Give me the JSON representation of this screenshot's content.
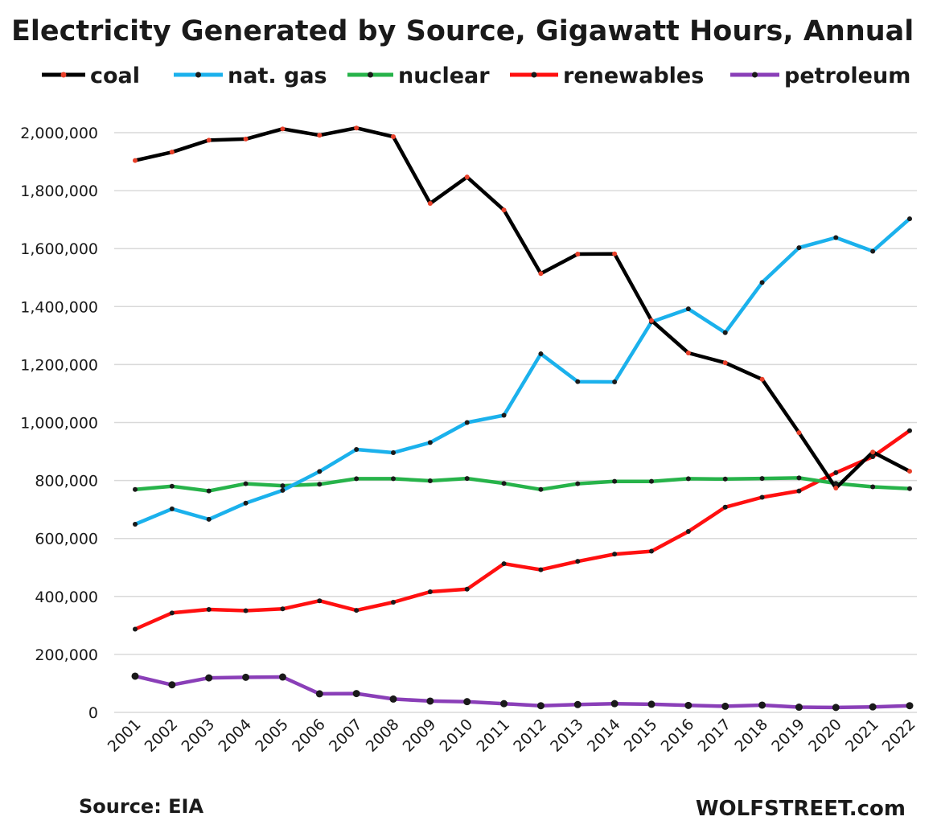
{
  "chart_data": {
    "type": "line",
    "title": "Electricity Generated by Source, Gigawatt Hours, Annual",
    "x": [
      "2001",
      "2002",
      "2003",
      "2004",
      "2005",
      "2006",
      "2007",
      "2008",
      "2009",
      "2010",
      "2011",
      "2012",
      "2013",
      "2014",
      "2015",
      "2016",
      "2017",
      "2018",
      "2019",
      "2020",
      "2021",
      "2022"
    ],
    "ylim": [
      0,
      2000000
    ],
    "yticks": [
      0,
      200000,
      400000,
      600000,
      800000,
      1000000,
      1200000,
      1400000,
      1600000,
      1800000,
      2000000
    ],
    "ytick_labels": [
      "0",
      "200,000",
      "400,000",
      "600,000",
      "800,000",
      "1,000,000",
      "1,200,000",
      "1,400,000",
      "1,600,000",
      "1,800,000",
      "2,000,000"
    ],
    "grid": true,
    "legend_position": "top",
    "series": [
      {
        "name": "coal",
        "color": "#000000",
        "marker_color": "#e8402a",
        "values": [
          1904000,
          1933000,
          1974000,
          1978000,
          2013000,
          1991000,
          2016000,
          1986000,
          1756000,
          1847000,
          1733000,
          1514000,
          1581000,
          1582000,
          1352000,
          1240000,
          1206000,
          1149000,
          965000,
          774000,
          898000,
          832000
        ]
      },
      {
        "name": "nat. gas",
        "color": "#1bb1ec",
        "marker_color": "#1a1a1a",
        "values": [
          649000,
          702000,
          666000,
          722000,
          766000,
          831000,
          907000,
          896000,
          931000,
          1000000,
          1025000,
          1237000,
          1141000,
          1140000,
          1347000,
          1392000,
          1310000,
          1483000,
          1603000,
          1638000,
          1591000,
          1703000
        ]
      },
      {
        "name": "nuclear",
        "color": "#27b34a",
        "marker_color": "#1a1a1a",
        "values": [
          769000,
          780000,
          764000,
          789000,
          782000,
          787000,
          806000,
          806000,
          799000,
          807000,
          790000,
          769000,
          789000,
          797000,
          797000,
          806000,
          805000,
          807000,
          809000,
          790000,
          778000,
          772000
        ]
      },
      {
        "name": "renewables",
        "color": "#ff1010",
        "marker_color": "#1a1a1a",
        "values": [
          287000,
          343000,
          355000,
          351000,
          357000,
          385000,
          352000,
          380000,
          416000,
          425000,
          513000,
          492000,
          521000,
          546000,
          556000,
          624000,
          708000,
          742000,
          764000,
          827000,
          882000,
          972000
        ]
      },
      {
        "name": "petroleum",
        "color": "#8a3fb8",
        "marker_color": "#1a1a1a",
        "values": [
          125000,
          95000,
          119000,
          121000,
          122000,
          64000,
          65000,
          46000,
          39000,
          37000,
          30000,
          23000,
          27000,
          30000,
          28000,
          24000,
          21000,
          25000,
          18000,
          17000,
          19000,
          23000
        ]
      }
    ]
  },
  "footer": {
    "source": "Source: EIA",
    "credit": "WOLFSTREET.com"
  }
}
